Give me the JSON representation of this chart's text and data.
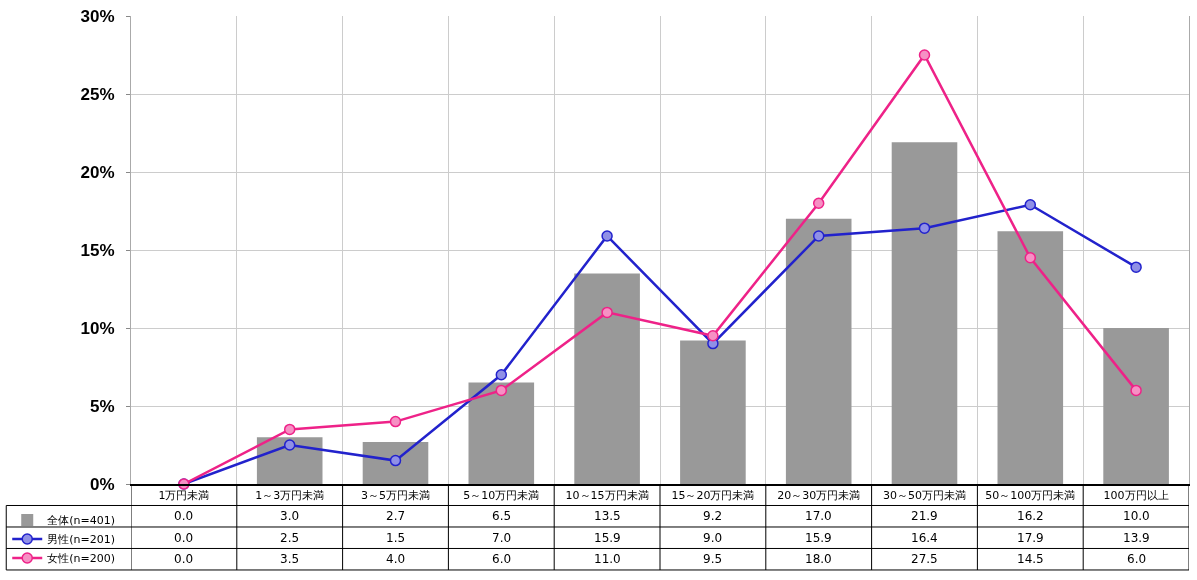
{
  "chart_data": {
    "type": "bar",
    "categories": [
      "1万円未満",
      "1～3万円未満",
      "3～5万円未満",
      "5～10万円未満",
      "10～15万円未満",
      "15～20万円未満",
      "20～30万円未満",
      "30～50万円未満",
      "50～100万円未満",
      "100万円以上"
    ],
    "series": [
      {
        "name": "全体(n=401)",
        "color": "#999999",
        "values": [
          0.0,
          3.0,
          2.7,
          6.5,
          13.5,
          9.2,
          17.0,
          21.9,
          16.2,
          10.0
        ],
        "value_labels": [
          "0.0",
          "3.0",
          "2.7",
          "6.5",
          "13.5",
          "9.2",
          "17.0",
          "21.9",
          "16.2",
          "10.0"
        ]
      },
      {
        "name": "男性(n=201)",
        "type": "line",
        "color": "#2222cc",
        "values": [
          0.0,
          2.5,
          1.5,
          7.0,
          15.9,
          9.0,
          15.9,
          16.4,
          17.9,
          13.9
        ],
        "value_labels": [
          "0.0",
          "2.5",
          "1.5",
          "7.0",
          "15.9",
          "9.0",
          "15.9",
          "16.4",
          "17.9",
          "13.9"
        ]
      },
      {
        "name": "女性(n=200)",
        "type": "line",
        "color": "#ee2288",
        "values": [
          0.0,
          3.5,
          4.0,
          6.0,
          11.0,
          9.5,
          18.0,
          27.5,
          14.5,
          6.0
        ],
        "value_labels": [
          "0.0",
          "3.5",
          "4.0",
          "6.0",
          "11.0",
          "9.5",
          "18.0",
          "27.5",
          "14.5",
          "6.0"
        ]
      }
    ],
    "ylim": [
      0,
      30
    ],
    "yticks": [
      {
        "value": 0,
        "label": "0%"
      },
      {
        "value": 5,
        "label": "5%"
      },
      {
        "value": 10,
        "label": "10%"
      },
      {
        "value": 15,
        "label": "15%"
      },
      {
        "value": 20,
        "label": "20%"
      },
      {
        "value": 25,
        "label": "25%"
      },
      {
        "value": 30,
        "label": "30%"
      }
    ],
    "grid": true,
    "legend": "bottom left",
    "marker": "circle",
    "line_style": "solid"
  }
}
